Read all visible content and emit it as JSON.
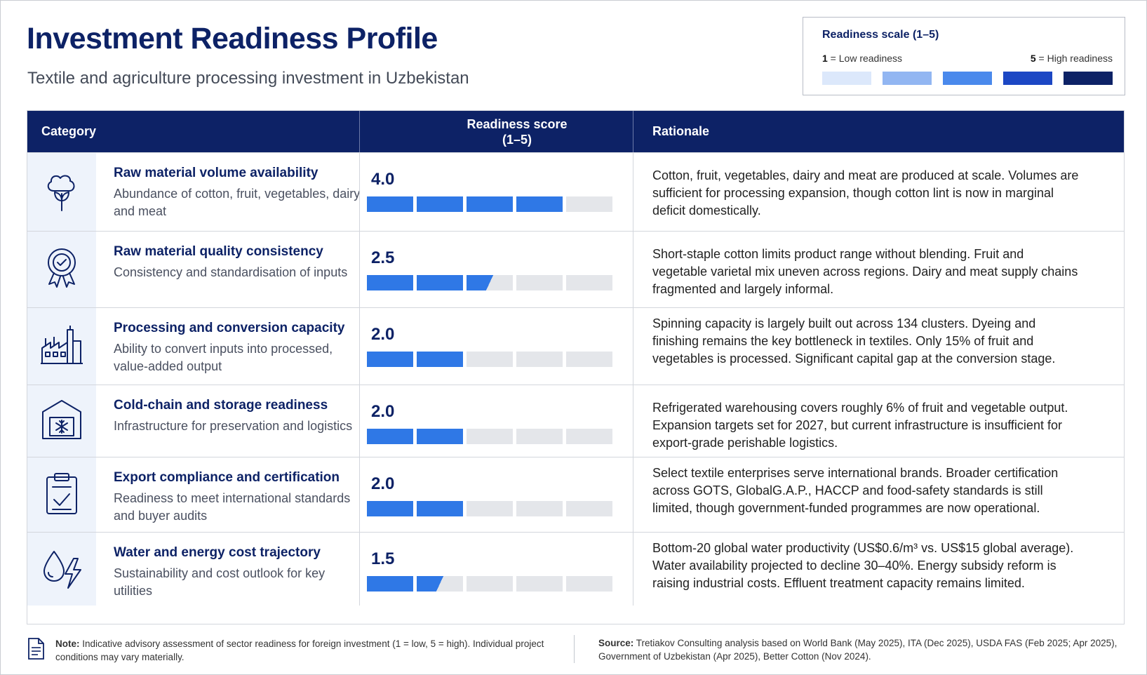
{
  "header": {
    "title": "Investment Readiness Profile",
    "subtitle": "Textile and agriculture processing investment in Uzbekistan"
  },
  "legend": {
    "title": "Readiness scale (1–5)",
    "low_num": "1",
    "low_text": " = Low readiness",
    "high_num": "5",
    "high_text": " = High readiness",
    "colors": [
      "#dce8fb",
      "#92b6f2",
      "#4a89ec",
      "#1c47c4",
      "#0d2266"
    ]
  },
  "table": {
    "headers": {
      "category": "Category",
      "score_line1": "Readiness score",
      "score_line2": "(1–5)",
      "rationale": "Rationale"
    },
    "fill_color": "#2f78e6",
    "empty_color": "#e4e6ea"
  },
  "chart_data": {
    "type": "bar",
    "categories": [
      "Raw material volume availability",
      "Raw material quality consistency",
      "Processing and conversion capacity",
      "Cold-chain and storage readiness",
      "Export compliance and certification",
      "Water and energy cost trajectory"
    ],
    "values": [
      4.0,
      2.5,
      2.0,
      2.0,
      2.0,
      1.5
    ],
    "ylim": [
      0,
      5
    ],
    "rows": [
      {
        "icon": "cotton-plant-icon",
        "title": "Raw material volume availability",
        "desc": "Abundance of cotton, fruit, vegetables, dairy and meat",
        "score_label": "4.0",
        "score": 4.0,
        "rationale": "Cotton, fruit, vegetables, dairy and meat are produced at scale. Volumes are sufficient for processing expansion, though cotton lint is now in marginal deficit domestically."
      },
      {
        "icon": "quality-badge-icon",
        "title": "Raw material quality consistency",
        "desc": "Consistency and standardisation of inputs",
        "score_label": "2.5",
        "score": 2.5,
        "rationale": "Short-staple cotton limits product range without blending. Fruit and vegetable varietal mix uneven across regions. Dairy and meat supply chains fragmented and largely informal."
      },
      {
        "icon": "factory-icon",
        "title": "Processing and conversion capacity",
        "desc": "Ability to convert inputs into processed, value-added output",
        "score_label": "2.0",
        "score": 2.0,
        "rationale": "Spinning capacity is largely built out across 134 clusters. Dyeing and finishing remains the key bottleneck in textiles. Only 15% of fruit and vegetables is processed. Significant capital gap at the conversion stage."
      },
      {
        "icon": "cold-storage-icon",
        "title": "Cold-chain and storage readiness",
        "desc": "Infrastructure for preservation and logistics",
        "score_label": "2.0",
        "score": 2.0,
        "rationale": "Refrigerated warehousing covers roughly 6% of fruit and vegetable output. Expansion targets set for 2027, but current infrastructure is insufficient for export-grade perishable logistics."
      },
      {
        "icon": "clipboard-check-icon",
        "title": "Export compliance and certification",
        "desc": "Readiness to meet international standards and buyer audits",
        "score_label": "2.0",
        "score": 2.0,
        "rationale": "Select textile enterprises serve international brands. Broader certification across GOTS, GlobalG.A.P., HACCP and food-safety standards is still limited, though government-funded programmes are now operational."
      },
      {
        "icon": "water-energy-icon",
        "title": "Water and energy cost trajectory",
        "desc": "Sustainability and cost outlook for key utilities",
        "score_label": "1.5",
        "score": 1.5,
        "rationale": "Bottom-20 global water productivity (US$0.6/m³ vs. US$15 global average). Water availability projected to decline 30–40%. Energy subsidy reform is raising industrial costs. Effluent treatment capacity remains limited."
      }
    ]
  },
  "footer": {
    "note_label": "Note:",
    "note_text": " Indicative advisory assessment of sector readiness for foreign investment (1 = low, 5 = high). Individual project conditions may vary materially.",
    "source_label": "Source:",
    "source_text": " Tretiakov Consulting analysis based on World Bank (May 2025), ITA (Dec 2025), USDA FAS (Feb 2025; Apr 2025), Government of Uzbekistan (Apr 2025), Better Cotton (Nov 2024)."
  }
}
